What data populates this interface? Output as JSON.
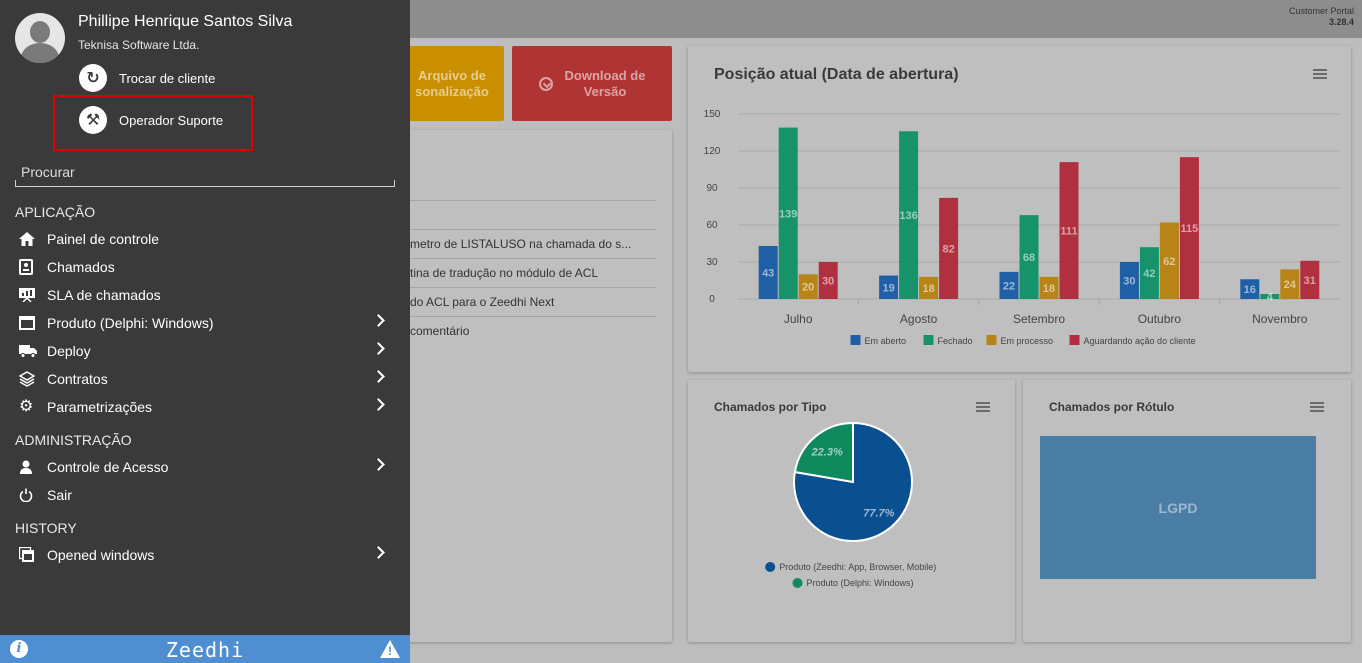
{
  "header": {
    "portal_name": "Customer Portal",
    "version": "3.28.4"
  },
  "actions": {
    "personalization": "Arquivo de\nsonalização",
    "download": "Download de\nVersão"
  },
  "list": {
    "rows": [
      "metro de LISTALUSO na chamada do s...",
      "tina de tradução no módulo de ACL",
      "do ACL para o Zeedhi Next",
      "comentário"
    ]
  },
  "chart_bar": {
    "title": "Posição atual (Data de abertura)"
  },
  "chart_pie": {
    "title": "Chamados por Tipo"
  },
  "chart_label": {
    "title": "Chamados por Rótulo",
    "tile": "LGPD"
  },
  "chart_data": [
    {
      "type": "bar",
      "title": "Posição atual (Data de abertura)",
      "categories": [
        "Julho",
        "Agosto",
        "Setembro",
        "Outubro",
        "Novembro"
      ],
      "series": [
        {
          "name": "Em aberto",
          "color": "#1f5fa5",
          "values": [
            43,
            19,
            22,
            30,
            16
          ]
        },
        {
          "name": "Fechado",
          "color": "#16936a",
          "values": [
            139,
            136,
            68,
            42,
            4
          ]
        },
        {
          "name": "Em processo",
          "color": "#b88417",
          "values": [
            20,
            18,
            18,
            62,
            24
          ]
        },
        {
          "name": "Aguardando ação do cliente",
          "color": "#b03040",
          "values": [
            30,
            82,
            111,
            115,
            31
          ]
        }
      ],
      "yticks": [
        "0",
        "30",
        "60",
        "90",
        "120",
        "150"
      ],
      "ylim": [
        0,
        150
      ],
      "grid": true,
      "legend": "bottom"
    },
    {
      "type": "pie",
      "title": "Chamados por Tipo",
      "slices": [
        {
          "name": "Produto (Zeedhi: App, Browser, Mobile)",
          "value": 77.7,
          "label": "77.7%",
          "color": "#0a4f8f"
        },
        {
          "name": "Produto (Delphi: Windows)",
          "value": 22.3,
          "label": "22.3%",
          "color": "#0f8a5f"
        }
      ],
      "legend": "bottom"
    }
  ],
  "drawer": {
    "user_name": "Phillipe Henrique Santos Silva",
    "company": "Teknisa Software Ltda.",
    "switch_client": "Trocar de cliente",
    "support_operator": "Operador Suporte",
    "search_placeholder": "Procurar",
    "sections": {
      "app": "APLICAÇÃO",
      "admin": "ADMINISTRAÇÃO",
      "history": "HISTORY"
    },
    "items": {
      "dashboard": "Painel de controle",
      "tickets": "Chamados",
      "sla": "SLA de chamados",
      "product": "Produto (Delphi: Windows)",
      "deploy": "Deploy",
      "contracts": "Contratos",
      "params": "Parametrizações",
      "access": "Controle de Acesso",
      "logout": "Sair",
      "windows": "Opened windows"
    },
    "footer_brand": "Zeedhi"
  }
}
